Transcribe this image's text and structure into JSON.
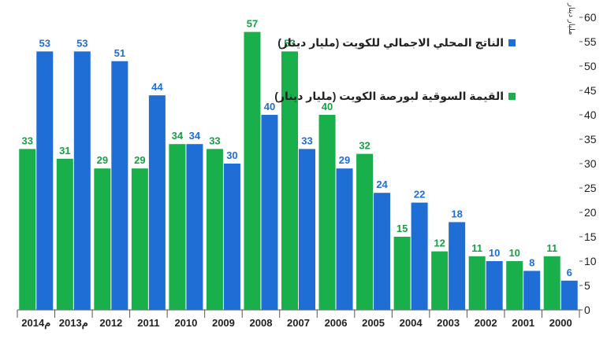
{
  "chart_data": {
    "type": "bar",
    "categories": [
      "2014م",
      "2013م",
      "2012",
      "2011",
      "2010",
      "2009",
      "2008",
      "2007",
      "2006",
      "2005",
      "2004",
      "2003",
      "2002",
      "2001",
      "2000"
    ],
    "series": [
      {
        "name": "القيمة السوقية لبورصة الكويت (مليار دينار)",
        "color": "#19b04b",
        "values": [
          33,
          31,
          29,
          29,
          34,
          33,
          57,
          53,
          40,
          32,
          15,
          12,
          11,
          10,
          11
        ]
      },
      {
        "name": "الناتج المحلي الاجمالي للكويت (مليار دينار)",
        "color": "#1f6ed6",
        "values": [
          53,
          53,
          51,
          44,
          34,
          30,
          40,
          33,
          29,
          24,
          22,
          18,
          10,
          8,
          6
        ]
      }
    ],
    "ylabel": "مليار دينار",
    "ylim": [
      0,
      60
    ],
    "yticks": [
      0,
      5,
      10,
      15,
      20,
      25,
      30,
      35,
      40,
      45,
      50,
      55,
      60
    ],
    "label_colors": {
      "green": "#19a046",
      "blue": "#1f6ed6"
    }
  }
}
